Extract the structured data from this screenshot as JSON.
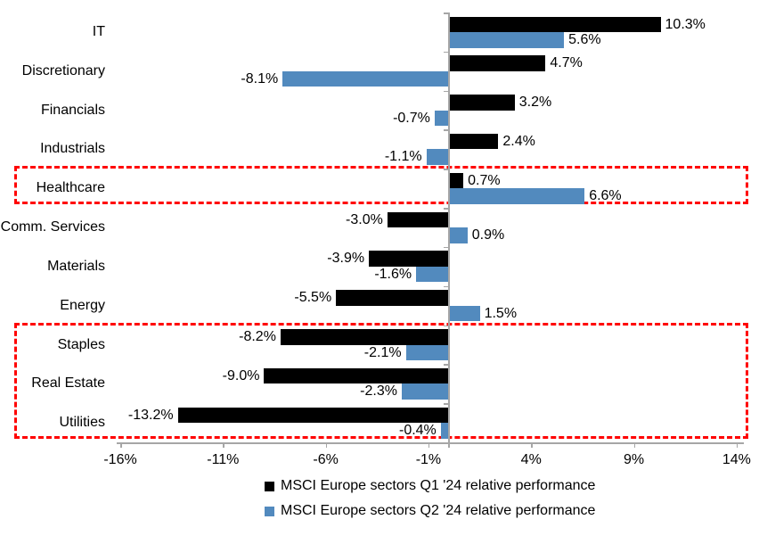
{
  "chart_data": {
    "type": "bar",
    "orientation": "horizontal",
    "categories": [
      "IT",
      "Discretionary",
      "Financials",
      "Industrials",
      "Healthcare",
      "Comm. Services",
      "Materials",
      "Energy",
      "Staples",
      "Real Estate",
      "Utilities"
    ],
    "series": [
      {
        "name": "MSCI Europe sectors Q1 '24 relative performance",
        "color": "#000000",
        "values": [
          10.3,
          4.7,
          3.2,
          2.4,
          0.7,
          -3.0,
          -3.9,
          -5.5,
          -8.2,
          -9.0,
          -13.2
        ],
        "labels": [
          "10.3%",
          "4.7%",
          "3.2%",
          "2.4%",
          "0.7%",
          "-3.0%",
          "-3.9%",
          "-5.5%",
          "-8.2%",
          "-9.0%",
          "-13.2%"
        ]
      },
      {
        "name": "MSCI Europe sectors Q2 '24 relative performance",
        "color": "#528ABE",
        "values": [
          5.6,
          -8.1,
          -0.7,
          -1.1,
          6.6,
          0.9,
          -1.6,
          1.5,
          -2.1,
          -2.3,
          -0.4
        ],
        "labels": [
          "5.6%",
          "-8.1%",
          "-0.7%",
          "-1.1%",
          "6.6%",
          "0.9%",
          "-1.6%",
          "1.5%",
          "-2.1%",
          "-2.3%",
          "-0.4%"
        ]
      }
    ],
    "x_axis": {
      "ticks": [
        -16,
        -11,
        -6,
        -1,
        4,
        9,
        14
      ],
      "tick_labels": [
        "-16%",
        "-11%",
        "-6%",
        "-1%",
        "4%",
        "9%",
        "14%"
      ],
      "range": [
        -16,
        14
      ],
      "unit": "%"
    },
    "legend": {
      "position": "bottom"
    },
    "grid": false,
    "axis_color": "#A6A6A6",
    "annotations": [
      {
        "type": "highlight-box",
        "style": "dashed",
        "color": "#FF0000",
        "from_category": "Healthcare",
        "to_category": "Healthcare"
      },
      {
        "type": "highlight-box",
        "style": "dashed",
        "color": "#FF0000",
        "from_category": "Staples",
        "to_category": "Utilities"
      }
    ]
  }
}
